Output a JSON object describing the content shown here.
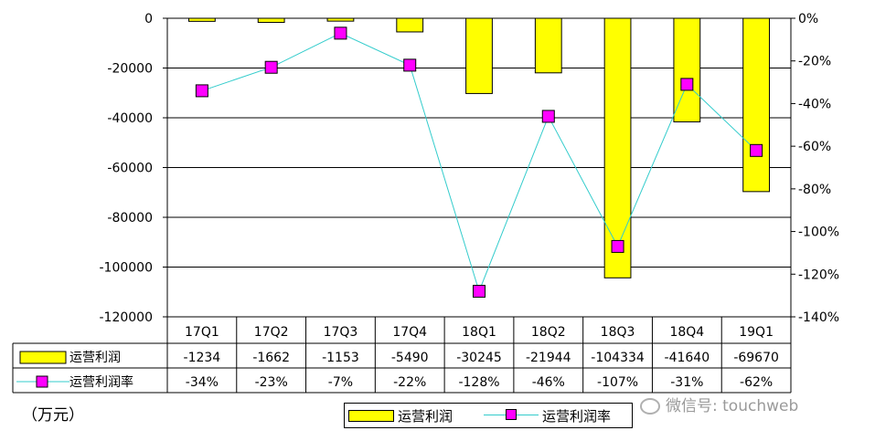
{
  "chart_data": {
    "type": "bar",
    "categories": [
      "17Q1",
      "17Q2",
      "17Q3",
      "17Q4",
      "18Q1",
      "18Q2",
      "18Q3",
      "18Q4",
      "19Q1"
    ],
    "series": [
      {
        "name": "运营利润",
        "type": "bar",
        "axis": "left",
        "values": [
          -1234,
          -1662,
          -1153,
          -5490,
          -30245,
          -21944,
          -104334,
          -41640,
          -69670
        ],
        "color": "#ffff00"
      },
      {
        "name": "运营利润率",
        "type": "line",
        "axis": "right",
        "values": [
          -34,
          -23,
          -7,
          -22,
          -128,
          -46,
          -107,
          -31,
          -62
        ],
        "labels": [
          "-34%",
          "-23%",
          "-7%",
          "-22%",
          "-128%",
          "-46%",
          "-107%",
          "-31%",
          "-62%"
        ],
        "color": "#33cccc",
        "marker_color": "#ff00ff"
      }
    ],
    "y_left_ticks": [
      "0",
      "-20000",
      "-40000",
      "-60000",
      "-80000",
      "-100000",
      "-120000"
    ],
    "ylim_left": [
      -120000,
      0
    ],
    "y_right_ticks": [
      "0%",
      "-20%",
      "-40%",
      "-60%",
      "-80%",
      "-100%",
      "-120%",
      "-140%"
    ],
    "ylim_right": [
      -140,
      0
    ],
    "unit_label": "（万元）",
    "grid": true,
    "legend_position": "bottom",
    "data_table": true
  },
  "watermark": {
    "text": "微信号: touchweb",
    "icon": "wechat-icon"
  }
}
